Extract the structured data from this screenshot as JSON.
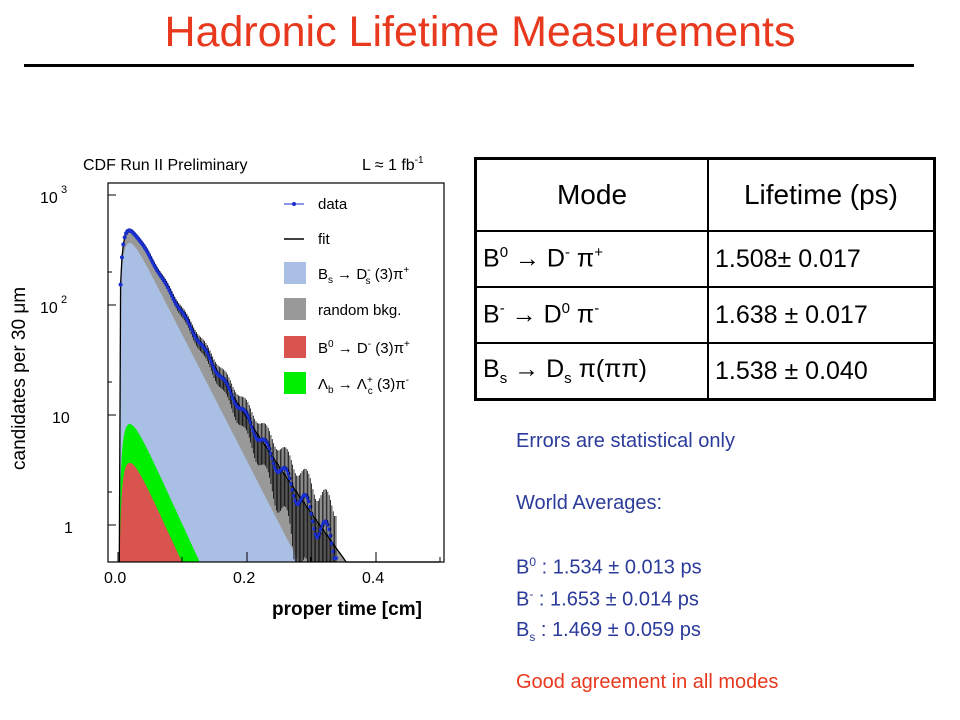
{
  "title": "Hadronic Lifetime Measurements",
  "plot": {
    "header_left": "CDF Run II Preliminary",
    "header_right_main": "L ≈ 1 fb",
    "header_right_sup": "-1",
    "ylabel": "candidates per 30 μm",
    "xlabel": "proper time [cm]",
    "xticks": [
      "0.0",
      "0.2",
      "0.4"
    ],
    "yticks": {
      "10": "10",
      "100": "10",
      "1000": "10",
      "one": "1",
      "exp2": "2",
      "exp3": "3"
    },
    "legend": {
      "data": "data",
      "fit": "fit",
      "bs": "B",
      "bs_sub": "s",
      "bs_arrow": " → D",
      "bs_dsup": "-",
      "bs_dsub": "s",
      "bs_tail": " (3)π",
      "bs_tail_sup": "+",
      "random": "random bkg.",
      "b0": "B",
      "b0_sup": "0",
      "b0_arrow": " → D",
      "b0_dsup": "-",
      "b0_tail": " (3)π",
      "b0_tail_sup": "+",
      "lb": "Λ",
      "lb_sub": "b",
      "lb_arrow": " → Λ",
      "lb_csup": "+",
      "lb_csub": "c",
      "lb_tail": " (3)π",
      "lb_tail_sup": "-"
    },
    "colors": {
      "bs": "#a9bfe3",
      "random": "#999999",
      "b0": "#d9534f",
      "lb": "#00ee00",
      "data": "#1a2fd0"
    }
  },
  "table": {
    "header_mode": "Mode",
    "header_lifetime": "Lifetime (ps)",
    "rows": [
      {
        "p1": "B",
        "p1_sup": "0",
        "arrow": " → D",
        "p2_sup": "-",
        "p3": " π",
        "p3_sup": "+",
        "lifetime": "1.508± 0.017"
      },
      {
        "p1": "B",
        "p1_sup": "-",
        "arrow": " → D",
        "p2_sup": "0",
        "p3": " π",
        "p3_sup": "-",
        "lifetime": "1.638 ± 0.017"
      },
      {
        "p1": "B",
        "p1_sub": "s",
        "arrow": " → D",
        "p2_sub": "s",
        "p3": " π(ππ)",
        "lifetime": "1.538 ± 0.040"
      }
    ]
  },
  "notes": {
    "errors": "Errors are statistical only",
    "world_header": "World Averages:",
    "wa_b0_p": "B",
    "wa_b0_sup": "0",
    "wa_b0_val": " : 1.534 ± 0.013 ps",
    "wa_bm_p": "B",
    "wa_bm_sup": "-",
    "wa_bm_val": " : 1.653 ± 0.014 ps",
    "wa_bs_p": "B",
    "wa_bs_sub": "s",
    "wa_bs_val": " : 1.469 ± 0.059 ps",
    "conclusion": "Good agreement in all modes"
  }
}
